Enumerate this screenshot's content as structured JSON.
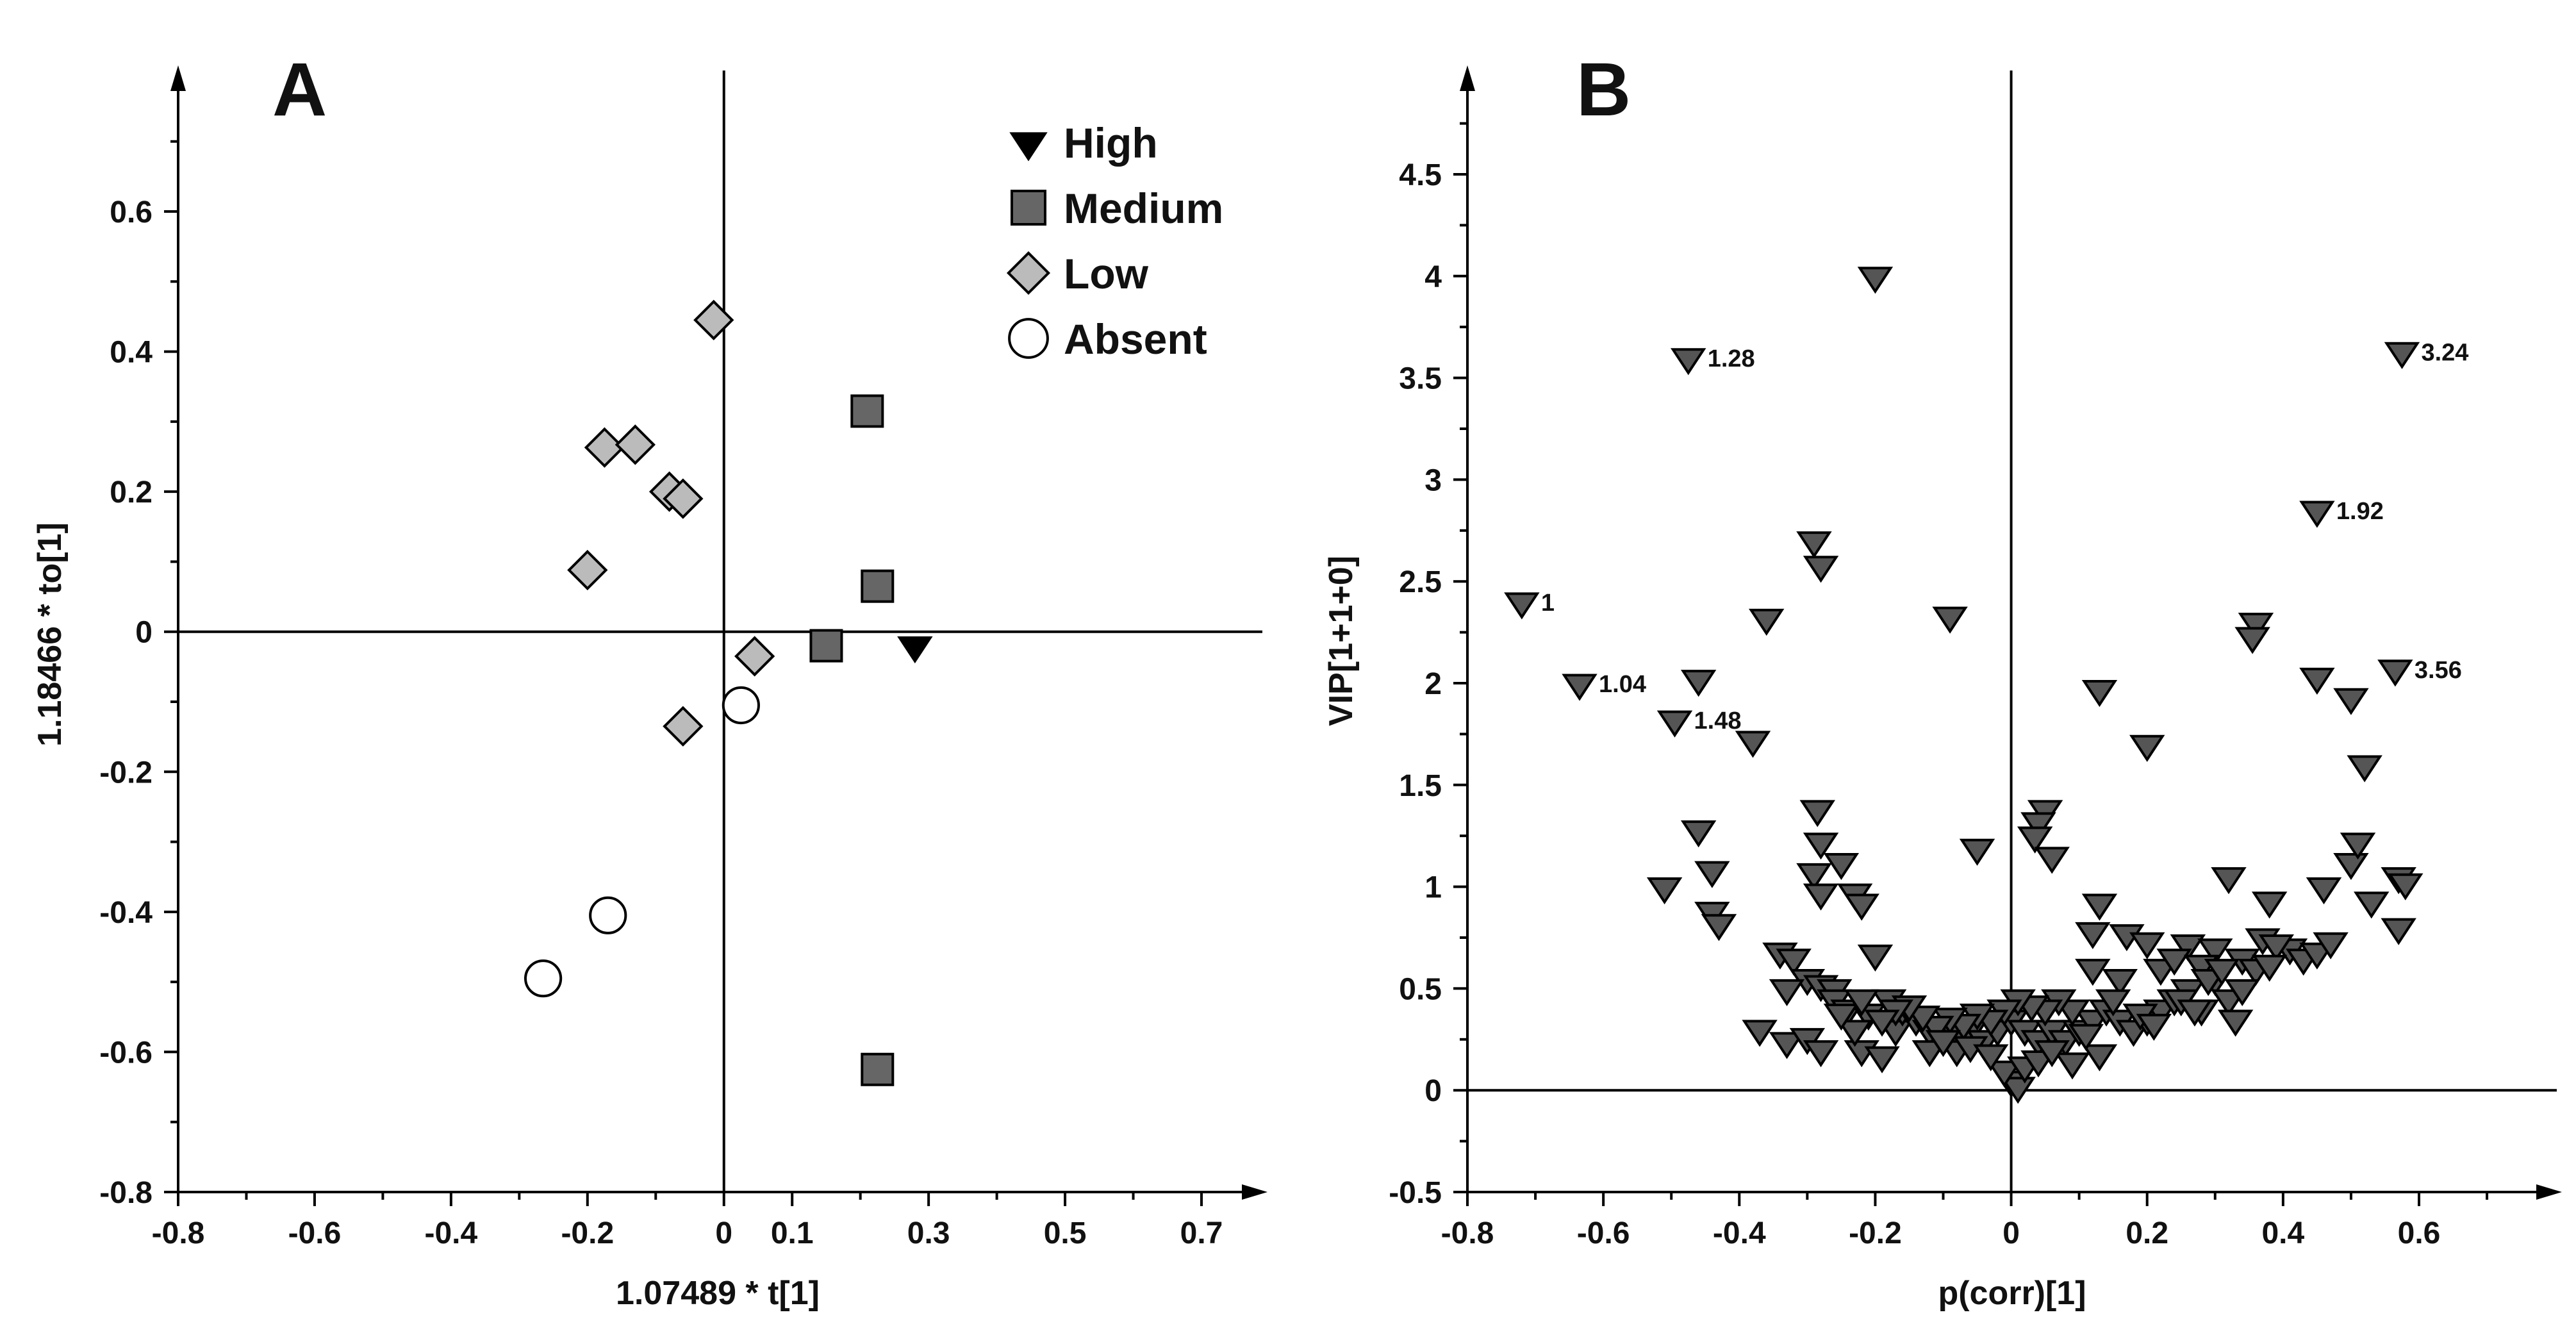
{
  "chart_data": [
    {
      "panel": "A",
      "type": "scatter",
      "xlabel": "1.07489 * t[1]",
      "ylabel": "1.18466 * to[1]",
      "xlim": [
        -0.8,
        0.8
      ],
      "ylim": [
        -0.8,
        0.75
      ],
      "x_ticks": [
        -0.8,
        -0.6,
        -0.4,
        -0.2,
        0,
        0.1,
        0.3,
        0.5,
        0.7
      ],
      "x_tick_labels": [
        "-0.8",
        "-0.6",
        "-0.4",
        "-0.2",
        "0",
        "0.1",
        "0.3",
        "0.5",
        "0.7"
      ],
      "y_ticks": [
        -0.8,
        -0.6,
        -0.4,
        -0.2,
        0,
        0.2,
        0.4,
        0.6
      ],
      "y_tick_labels": [
        "-0.8",
        "-0.6",
        "-0.4",
        "-0.2",
        "0",
        "0.2",
        "0.4",
        "0.6"
      ],
      "grid": false,
      "legend_position": "top-right",
      "series": [
        {
          "name": "High",
          "marker": "triangle-down",
          "color": "#000000",
          "points": [
            [
              0.28,
              -0.02
            ]
          ]
        },
        {
          "name": "Medium",
          "marker": "square",
          "color": "#666666",
          "points": [
            [
              0.21,
              0.315
            ],
            [
              0.225,
              0.065
            ],
            [
              0.15,
              -0.02
            ],
            [
              0.225,
              -0.625
            ]
          ]
        },
        {
          "name": "Low",
          "marker": "diamond",
          "color": "#bbbbbb",
          "points": [
            [
              -0.015,
              0.445
            ],
            [
              -0.175,
              0.263
            ],
            [
              -0.13,
              0.267
            ],
            [
              -0.08,
              0.2
            ],
            [
              -0.06,
              0.19
            ],
            [
              -0.2,
              0.088
            ],
            [
              0.045,
              -0.035
            ],
            [
              -0.06,
              -0.135
            ]
          ]
        },
        {
          "name": "Absent",
          "marker": "circle",
          "color": "#ffffff",
          "points": [
            [
              0.025,
              -0.105
            ],
            [
              -0.17,
              -0.405
            ],
            [
              -0.265,
              -0.495
            ]
          ]
        }
      ]
    },
    {
      "panel": "B",
      "type": "scatter",
      "xlabel": "p(corr)[1]",
      "ylabel": "VIP[1+1+0]",
      "xlim": [
        -0.8,
        0.8
      ],
      "ylim": [
        -0.5,
        4.9
      ],
      "x_ticks": [
        -0.8,
        -0.6,
        -0.4,
        -0.2,
        0,
        0.2,
        0.4,
        0.6
      ],
      "x_tick_labels": [
        "-0.8",
        "-0.6",
        "-0.4",
        "-0.2",
        "0",
        "0.2",
        "0.4",
        "0.6"
      ],
      "y_ticks": [
        -0.5,
        0,
        0.5,
        1,
        1.5,
        2,
        2.5,
        3,
        3.5,
        4,
        4.5
      ],
      "y_tick_labels": [
        "-0.5",
        "0",
        "0.5",
        "1",
        "1.5",
        "2",
        "2.5",
        "3",
        "3.5",
        "4",
        "4.5"
      ],
      "grid": false,
      "marker": "triangle-down",
      "color": "#555555",
      "annotations": [
        {
          "text": "1",
          "x": -0.72,
          "y": 2.4
        },
        {
          "text": "1.04",
          "x": -0.635,
          "y": 2.0
        },
        {
          "text": "1.28",
          "x": -0.475,
          "y": 3.6
        },
        {
          "text": "1.48",
          "x": -0.495,
          "y": 1.82
        },
        {
          "text": "3.24",
          "x": 0.575,
          "y": 3.63
        },
        {
          "text": "1.92",
          "x": 0.45,
          "y": 2.85
        },
        {
          "text": "3.56",
          "x": 0.565,
          "y": 2.07
        }
      ],
      "points": [
        [
          -0.72,
          2.4
        ],
        [
          -0.635,
          2.0
        ],
        [
          -0.475,
          3.6
        ],
        [
          -0.495,
          1.82
        ],
        [
          0.575,
          3.63
        ],
        [
          0.45,
          2.85
        ],
        [
          0.565,
          2.07
        ],
        [
          -0.2,
          4.0
        ],
        [
          -0.29,
          2.7
        ],
        [
          -0.28,
          2.58
        ],
        [
          -0.36,
          2.32
        ],
        [
          -0.09,
          2.33
        ],
        [
          -0.46,
          2.02
        ],
        [
          -0.38,
          1.72
        ],
        [
          0.36,
          2.3
        ],
        [
          0.355,
          2.23
        ],
        [
          0.45,
          2.03
        ],
        [
          0.5,
          1.93
        ],
        [
          0.13,
          1.97
        ],
        [
          0.2,
          1.7
        ],
        [
          0.52,
          1.6
        ],
        [
          -0.285,
          1.38
        ],
        [
          -0.46,
          1.28
        ],
        [
          -0.44,
          1.08
        ],
        [
          -0.51,
          1.0
        ],
        [
          -0.44,
          0.88
        ],
        [
          -0.43,
          0.82
        ],
        [
          -0.28,
          1.22
        ],
        [
          -0.25,
          1.12
        ],
        [
          -0.29,
          1.07
        ],
        [
          -0.28,
          0.97
        ],
        [
          -0.23,
          0.97
        ],
        [
          -0.22,
          0.92
        ],
        [
          0.05,
          1.38
        ],
        [
          0.04,
          1.32
        ],
        [
          0.035,
          1.25
        ],
        [
          0.06,
          1.15
        ],
        [
          -0.05,
          1.19
        ],
        [
          0.13,
          0.92
        ],
        [
          0.12,
          0.78
        ],
        [
          0.17,
          0.77
        ],
        [
          0.2,
          0.73
        ],
        [
          0.26,
          0.72
        ],
        [
          0.3,
          0.7
        ],
        [
          0.32,
          1.05
        ],
        [
          0.38,
          0.93
        ],
        [
          0.41,
          0.7
        ],
        [
          0.46,
          1.0
        ],
        [
          0.5,
          1.12
        ],
        [
          0.51,
          1.22
        ],
        [
          0.57,
          1.05
        ],
        [
          0.58,
          1.02
        ],
        [
          0.53,
          0.93
        ],
        [
          0.57,
          0.8
        ],
        [
          0.37,
          0.75
        ],
        [
          0.39,
          0.72
        ],
        [
          0.43,
          0.65
        ],
        [
          0.45,
          0.68
        ],
        [
          0.47,
          0.73
        ],
        [
          0.34,
          0.65
        ],
        [
          0.36,
          0.6
        ],
        [
          -0.34,
          0.68
        ],
        [
          -0.32,
          0.65
        ],
        [
          -0.3,
          0.55
        ],
        [
          -0.28,
          0.52
        ],
        [
          -0.26,
          0.5
        ],
        [
          -0.2,
          0.67
        ],
        [
          -0.33,
          0.5
        ],
        [
          -0.37,
          0.3
        ],
        [
          -0.33,
          0.24
        ],
        [
          -0.3,
          0.26
        ],
        [
          -0.28,
          0.2
        ],
        [
          -0.22,
          0.2
        ],
        [
          -0.19,
          0.17
        ],
        [
          -0.17,
          0.3
        ],
        [
          -0.26,
          0.45
        ],
        [
          -0.24,
          0.4
        ],
        [
          -0.21,
          0.38
        ],
        [
          -0.18,
          0.45
        ],
        [
          -0.16,
          0.4
        ],
        [
          -0.14,
          0.35
        ],
        [
          -0.12,
          0.3
        ],
        [
          -0.1,
          0.3
        ],
        [
          -0.08,
          0.28
        ],
        [
          -0.06,
          0.3
        ],
        [
          -0.04,
          0.25
        ],
        [
          -0.02,
          0.3
        ],
        [
          0.0,
          0.35
        ],
        [
          0.02,
          0.3
        ],
        [
          0.04,
          0.25
        ],
        [
          0.06,
          0.3
        ],
        [
          0.08,
          0.25
        ],
        [
          0.1,
          0.3
        ],
        [
          0.12,
          0.35
        ],
        [
          0.14,
          0.4
        ],
        [
          0.16,
          0.35
        ],
        [
          0.18,
          0.3
        ],
        [
          0.2,
          0.35
        ],
        [
          0.22,
          0.4
        ],
        [
          0.24,
          0.45
        ],
        [
          0.26,
          0.5
        ],
        [
          0.28,
          0.4
        ],
        [
          0.3,
          0.55
        ],
        [
          0.32,
          0.45
        ],
        [
          0.34,
          0.5
        ],
        [
          0.22,
          0.6
        ],
        [
          0.24,
          0.65
        ],
        [
          0.28,
          0.62
        ],
        [
          0.16,
          0.55
        ],
        [
          0.12,
          0.6
        ],
        [
          0.09,
          0.4
        ],
        [
          0.07,
          0.45
        ],
        [
          0.05,
          0.4
        ],
        [
          0.03,
          0.42
        ],
        [
          0.01,
          0.45
        ],
        [
          -0.01,
          0.4
        ],
        [
          -0.03,
          0.35
        ],
        [
          -0.05,
          0.38
        ],
        [
          -0.07,
          0.33
        ],
        [
          -0.09,
          0.36
        ],
        [
          -0.11,
          0.32
        ],
        [
          -0.13,
          0.37
        ],
        [
          -0.15,
          0.42
        ],
        [
          -0.17,
          0.4
        ],
        [
          -0.19,
          0.35
        ],
        [
          -0.23,
          0.3
        ],
        [
          -0.25,
          0.38
        ],
        [
          -0.22,
          0.45
        ],
        [
          -0.08,
          0.2
        ],
        [
          -0.06,
          0.22
        ],
        [
          0.09,
          0.14
        ],
        [
          0.13,
          0.18
        ],
        [
          0.0,
          0.05
        ],
        [
          0.01,
          0.02
        ],
        [
          -0.01,
          0.1
        ],
        [
          0.02,
          0.12
        ],
        [
          -0.03,
          0.18
        ],
        [
          0.04,
          0.15
        ],
        [
          -0.12,
          0.2
        ],
        [
          -0.1,
          0.25
        ],
        [
          0.06,
          0.2
        ],
        [
          0.11,
          0.28
        ],
        [
          0.15,
          0.45
        ],
        [
          0.19,
          0.38
        ],
        [
          0.21,
          0.33
        ],
        [
          0.25,
          0.45
        ],
        [
          0.27,
          0.4
        ],
        [
          0.29,
          0.55
        ],
        [
          0.31,
          0.6
        ],
        [
          0.33,
          0.35
        ],
        [
          0.38,
          0.62
        ]
      ]
    }
  ],
  "panels": {
    "A": {
      "letter": "A",
      "xlabel": "1.07489 * t[1]",
      "ylabel": "1.18466 * to[1]",
      "legend": [
        "High",
        "Medium",
        "Low",
        "Absent"
      ]
    },
    "B": {
      "letter": "B",
      "xlabel": "p(corr)[1]",
      "ylabel": "VIP[1+1+0]"
    }
  }
}
